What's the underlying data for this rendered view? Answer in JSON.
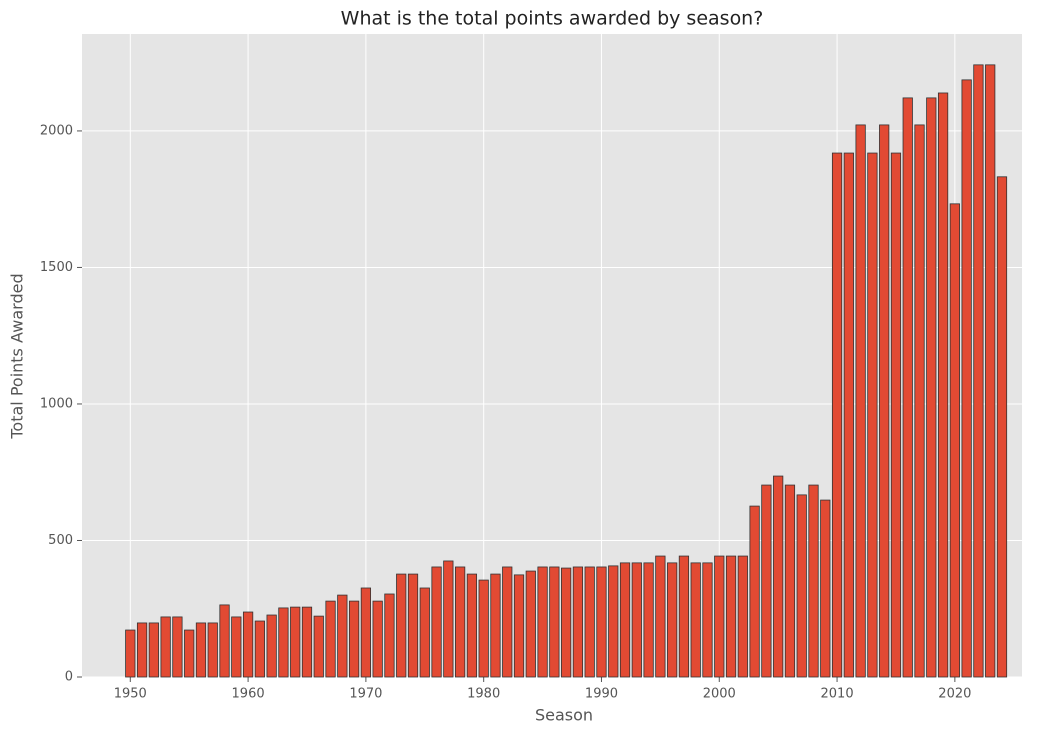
{
  "chart_data": {
    "type": "bar",
    "title": "What is the total points awarded by season?",
    "xlabel": "Season",
    "ylabel": "Total Points Awarded",
    "x": [
      1950,
      1951,
      1952,
      1953,
      1954,
      1955,
      1956,
      1957,
      1958,
      1959,
      1960,
      1961,
      1962,
      1963,
      1964,
      1965,
      1966,
      1967,
      1968,
      1969,
      1970,
      1971,
      1972,
      1973,
      1974,
      1975,
      1976,
      1977,
      1978,
      1979,
      1980,
      1981,
      1982,
      1983,
      1984,
      1985,
      1986,
      1987,
      1988,
      1989,
      1990,
      1991,
      1992,
      1993,
      1994,
      1995,
      1996,
      1997,
      1998,
      1999,
      2000,
      2001,
      2002,
      2003,
      2004,
      2005,
      2006,
      2007,
      2008,
      2009,
      2010,
      2011,
      2012,
      2013,
      2014,
      2015,
      2016,
      2017,
      2018,
      2019,
      2020,
      2021,
      2022,
      2023,
      2024
    ],
    "values": [
      172,
      198,
      198,
      220,
      220,
      172,
      198,
      198,
      264,
      220,
      238,
      205,
      227,
      253,
      256,
      256,
      223,
      278,
      300,
      278,
      326,
      278,
      304,
      377,
      377,
      326,
      403,
      425,
      403,
      377,
      355,
      377,
      403,
      374,
      388,
      403,
      403,
      399,
      403,
      403,
      403,
      407,
      418,
      418,
      418,
      443,
      418,
      443,
      418,
      418,
      443,
      443,
      443,
      626,
      703,
      736,
      703,
      667,
      703,
      648,
      1919,
      1919,
      2022,
      1919,
      2022,
      1919,
      2121,
      2022,
      2121,
      2139,
      1733,
      2187,
      2242,
      2242,
      1832
    ],
    "color": "#E24A33",
    "xlim": [
      1945.9,
      2025.7
    ],
    "xticks": [
      1950,
      1960,
      1970,
      1980,
      1990,
      2000,
      2010,
      2020
    ],
    "ylim": [
      0,
      2355
    ],
    "yticks": [
      0,
      500,
      1000,
      1500,
      2000
    ],
    "grid": true
  }
}
